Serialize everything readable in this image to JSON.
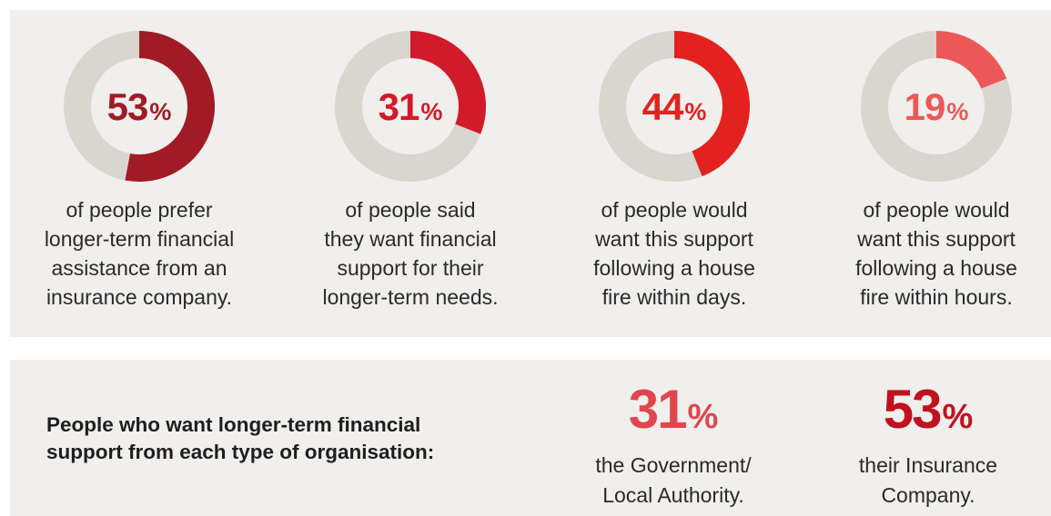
{
  "chart_data": {
    "type": "pie",
    "donuts": [
      {
        "value": 53,
        "number": "53",
        "unit": "%",
        "color": "#a01b25",
        "caption": [
          "of people prefer",
          "longer-term financial",
          "assistance from an",
          "insurance company."
        ]
      },
      {
        "value": 31,
        "number": "31",
        "unit": "%",
        "color": "#d11a2a",
        "caption": [
          "of people said",
          "they want financial",
          "support for their",
          "longer-term needs."
        ]
      },
      {
        "value": 44,
        "number": "44",
        "unit": "%",
        "color": "#e3221f",
        "caption": [
          "of people would",
          "want this support",
          "following a house",
          "fire within days."
        ]
      },
      {
        "value": 19,
        "number": "19",
        "unit": "%",
        "color": "#ec5858",
        "caption": [
          "of people would",
          "want this support",
          "following a house",
          "fire within hours."
        ]
      }
    ],
    "track_color": "#d9d5cf",
    "organisation_stats": {
      "heading": [
        "People who want longer-term financial",
        "support from each type of organisation:"
      ],
      "items": [
        {
          "value": 31,
          "number": "31",
          "unit": "%",
          "color": "#e0464d",
          "label": [
            "the Government/",
            "Local Authority."
          ]
        },
        {
          "value": 53,
          "number": "53",
          "unit": "%",
          "color": "#c2111e",
          "label": [
            "their Insurance",
            "Company."
          ]
        }
      ]
    }
  }
}
